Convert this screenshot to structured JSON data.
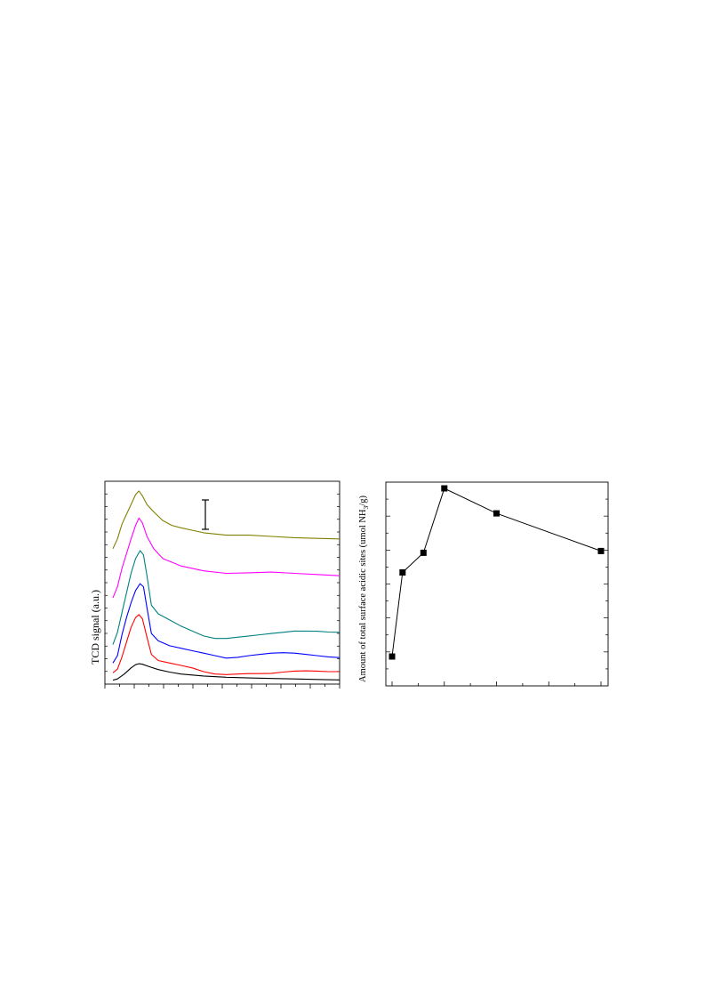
{
  "chart_data": [
    {
      "type": "line",
      "ylabel": "TCD signal (a.u.)",
      "xlabel": "",
      "title": "",
      "grid": false,
      "x_tick_labels_visible": false,
      "y_tick_labels_visible": false,
      "scale_bar": true,
      "series": [
        {
          "color": "#000000",
          "points": [
            [
              0,
              0.05
            ],
            [
              0.02,
              0.1
            ],
            [
              0.05,
              0.3
            ],
            [
              0.08,
              0.55
            ],
            [
              0.1,
              0.68
            ],
            [
              0.115,
              0.72
            ],
            [
              0.13,
              0.7
            ],
            [
              0.16,
              0.6
            ],
            [
              0.2,
              0.48
            ],
            [
              0.25,
              0.38
            ],
            [
              0.3,
              0.3
            ],
            [
              0.4,
              0.22
            ],
            [
              0.5,
              0.17
            ],
            [
              0.6,
              0.14
            ],
            [
              0.7,
              0.12
            ],
            [
              0.8,
              0.1
            ],
            [
              0.9,
              0.08
            ],
            [
              1,
              0.06
            ]
          ]
        },
        {
          "color": "#ff0000",
          "points": [
            [
              0,
              0.35
            ],
            [
              0.02,
              0.5
            ],
            [
              0.04,
              1.0
            ],
            [
              0.06,
              1.6
            ],
            [
              0.08,
              2.2
            ],
            [
              0.1,
              2.6
            ],
            [
              0.115,
              2.72
            ],
            [
              0.13,
              2.55
            ],
            [
              0.15,
              1.8
            ],
            [
              0.17,
              1.1
            ],
            [
              0.2,
              0.85
            ],
            [
              0.25,
              0.75
            ],
            [
              0.3,
              0.65
            ],
            [
              0.35,
              0.55
            ],
            [
              0.4,
              0.4
            ],
            [
              0.45,
              0.3
            ],
            [
              0.5,
              0.28
            ],
            [
              0.55,
              0.3
            ],
            [
              0.6,
              0.32
            ],
            [
              0.65,
              0.32
            ],
            [
              0.7,
              0.33
            ],
            [
              0.75,
              0.38
            ],
            [
              0.8,
              0.42
            ],
            [
              0.85,
              0.43
            ],
            [
              0.9,
              0.42
            ],
            [
              0.95,
              0.4
            ],
            [
              1,
              0.4
            ]
          ]
        },
        {
          "color": "#0000ff",
          "points": [
            [
              0,
              0.75
            ],
            [
              0.02,
              1.05
            ],
            [
              0.04,
              1.9
            ],
            [
              0.06,
              2.6
            ],
            [
              0.08,
              3.2
            ],
            [
              0.1,
              3.7
            ],
            [
              0.12,
              3.98
            ],
            [
              0.135,
              3.85
            ],
            [
              0.15,
              3.0
            ],
            [
              0.17,
              1.95
            ],
            [
              0.2,
              1.65
            ],
            [
              0.25,
              1.45
            ],
            [
              0.3,
              1.35
            ],
            [
              0.35,
              1.25
            ],
            [
              0.4,
              1.15
            ],
            [
              0.45,
              1.05
            ],
            [
              0.5,
              0.95
            ],
            [
              0.55,
              0.98
            ],
            [
              0.6,
              1.05
            ],
            [
              0.65,
              1.1
            ],
            [
              0.7,
              1.15
            ],
            [
              0.75,
              1.17
            ],
            [
              0.8,
              1.15
            ],
            [
              0.85,
              1.1
            ],
            [
              0.9,
              1.05
            ],
            [
              0.95,
              1.0
            ],
            [
              1,
              0.97
            ]
          ]
        },
        {
          "color": "#008080",
          "points": [
            [
              0,
              1.5
            ],
            [
              0.02,
              2.0
            ],
            [
              0.04,
              2.8
            ],
            [
              0.06,
              3.6
            ],
            [
              0.08,
              4.4
            ],
            [
              0.1,
              5.0
            ],
            [
              0.12,
              5.32
            ],
            [
              0.135,
              5.15
            ],
            [
              0.15,
              4.3
            ],
            [
              0.17,
              3.1
            ],
            [
              0.2,
              2.75
            ],
            [
              0.25,
              2.5
            ],
            [
              0.3,
              2.25
            ],
            [
              0.35,
              2.05
            ],
            [
              0.4,
              1.85
            ],
            [
              0.45,
              1.75
            ],
            [
              0.5,
              1.75
            ],
            [
              0.55,
              1.8
            ],
            [
              0.6,
              1.85
            ],
            [
              0.65,
              1.9
            ],
            [
              0.7,
              1.95
            ],
            [
              0.75,
              2.0
            ],
            [
              0.8,
              2.05
            ],
            [
              0.85,
              2.05
            ],
            [
              0.9,
              2.04
            ],
            [
              0.95,
              2.01
            ],
            [
              1,
              2.0
            ]
          ]
        },
        {
          "color": "#ff00ff",
          "points": [
            [
              0,
              3.4
            ],
            [
              0.02,
              3.85
            ],
            [
              0.04,
              4.6
            ],
            [
              0.06,
              5.2
            ],
            [
              0.08,
              5.8
            ],
            [
              0.1,
              6.35
            ],
            [
              0.115,
              6.65
            ],
            [
              0.13,
              6.45
            ],
            [
              0.15,
              5.9
            ],
            [
              0.18,
              5.4
            ],
            [
              0.22,
              5.0
            ],
            [
              0.26,
              4.85
            ],
            [
              0.3,
              4.7
            ],
            [
              0.35,
              4.6
            ],
            [
              0.4,
              4.5
            ],
            [
              0.5,
              4.4
            ],
            [
              0.6,
              4.42
            ],
            [
              0.7,
              4.45
            ],
            [
              0.8,
              4.4
            ],
            [
              0.9,
              4.35
            ],
            [
              1,
              4.3
            ]
          ]
        },
        {
          "color": "#808000",
          "points": [
            [
              0,
              5.4
            ],
            [
              0.02,
              5.8
            ],
            [
              0.04,
              6.4
            ],
            [
              0.06,
              6.8
            ],
            [
              0.08,
              7.2
            ],
            [
              0.1,
              7.6
            ],
            [
              0.115,
              7.75
            ],
            [
              0.13,
              7.55
            ],
            [
              0.15,
              7.2
            ],
            [
              0.18,
              6.9
            ],
            [
              0.22,
              6.55
            ],
            [
              0.26,
              6.35
            ],
            [
              0.3,
              6.25
            ],
            [
              0.35,
              6.15
            ],
            [
              0.4,
              6.05
            ],
            [
              0.5,
              5.95
            ],
            [
              0.6,
              5.95
            ],
            [
              0.7,
              5.9
            ],
            [
              0.8,
              5.85
            ],
            [
              0.9,
              5.82
            ],
            [
              1,
              5.8
            ]
          ]
        }
      ]
    },
    {
      "type": "scatter",
      "ylabel": "Amount of total surface acidic sites (umol NH",
      "ylabel_subscript": "3",
      "ylabel_suffix": "/g)",
      "xlabel": "",
      "title": "",
      "grid": false,
      "x_tick_labels_visible": false,
      "y_tick_labels_visible": false,
      "connected": true,
      "marker": "square",
      "x": [
        0,
        0.5,
        1.5,
        2.5,
        5,
        10
      ],
      "y": [
        0.06,
        0.53,
        0.64,
        1.0,
        0.86,
        0.65
      ]
    }
  ]
}
